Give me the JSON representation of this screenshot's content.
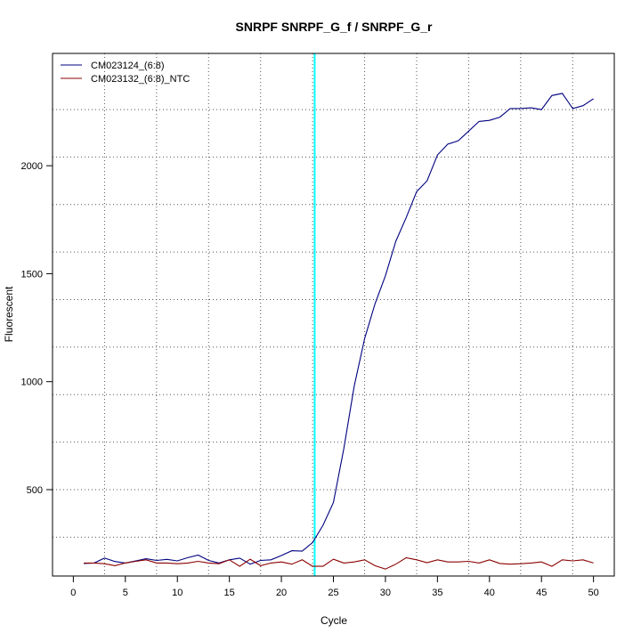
{
  "chart_data": {
    "type": "line",
    "title": "SNRPF  SNRPF_G_f / SNRPF_G_r",
    "xlabel": "Cycle",
    "ylabel": "Fluorescent",
    "xlim": [
      -2,
      52
    ],
    "ylim": [
      100,
      2520
    ],
    "x_ticks": [
      0,
      5,
      10,
      15,
      20,
      25,
      30,
      35,
      40,
      45,
      50
    ],
    "y_ticks": [
      500,
      1000,
      1500,
      2000
    ],
    "x_grid": [
      3,
      8,
      13,
      18,
      23,
      28,
      33,
      38,
      43,
      48
    ],
    "y_grid": [
      280,
      500,
      720,
      940,
      1160,
      1380,
      1600,
      1820,
      2040,
      2260
    ],
    "grid": true,
    "threshold_x": 23.2,
    "threshold_color": "#00ffff",
    "legend_position": "top-left",
    "series": [
      {
        "name": "CM023124_(6:8)",
        "color": "#000080",
        "x": [
          1,
          2,
          3,
          4,
          5,
          6,
          7,
          8,
          9,
          10,
          11,
          12,
          13,
          14,
          15,
          16,
          17,
          18,
          19,
          20,
          21,
          22,
          23,
          24,
          25,
          26,
          27,
          28,
          29,
          30,
          31,
          32,
          33,
          34,
          35,
          36,
          37,
          38,
          39,
          40,
          41,
          42,
          43,
          44,
          45,
          46,
          47,
          48,
          49,
          50
        ],
        "values": [
          158,
          160,
          183,
          167,
          160,
          170,
          180,
          172,
          177,
          170,
          185,
          197,
          172,
          160,
          175,
          183,
          155,
          172,
          175,
          195,
          217,
          215,
          255,
          335,
          440,
          690,
          980,
          1200,
          1360,
          1490,
          1650,
          1760,
          1880,
          1930,
          2050,
          2100,
          2115,
          2160,
          2205,
          2210,
          2225,
          2265,
          2265,
          2268,
          2260,
          2325,
          2335,
          2265,
          2278,
          2310
        ]
      },
      {
        "name": "CM023132_(6:8)_NTC",
        "color": "#8b0000",
        "x": [
          1,
          2,
          3,
          4,
          5,
          6,
          7,
          8,
          9,
          10,
          11,
          12,
          13,
          14,
          15,
          16,
          17,
          18,
          19,
          20,
          21,
          22,
          23,
          24,
          25,
          26,
          27,
          28,
          29,
          30,
          31,
          32,
          33,
          34,
          35,
          36,
          37,
          38,
          39,
          40,
          41,
          42,
          43,
          44,
          45,
          46,
          47,
          48,
          49,
          50
        ],
        "values": [
          160,
          160,
          157,
          148,
          160,
          168,
          175,
          160,
          160,
          157,
          160,
          168,
          160,
          157,
          175,
          145,
          178,
          148,
          160,
          165,
          155,
          175,
          145,
          145,
          178,
          160,
          165,
          175,
          148,
          132,
          155,
          185,
          175,
          162,
          175,
          165,
          165,
          168,
          160,
          175,
          158,
          155,
          157,
          160,
          165,
          145,
          175,
          170,
          175,
          160
        ]
      }
    ]
  }
}
